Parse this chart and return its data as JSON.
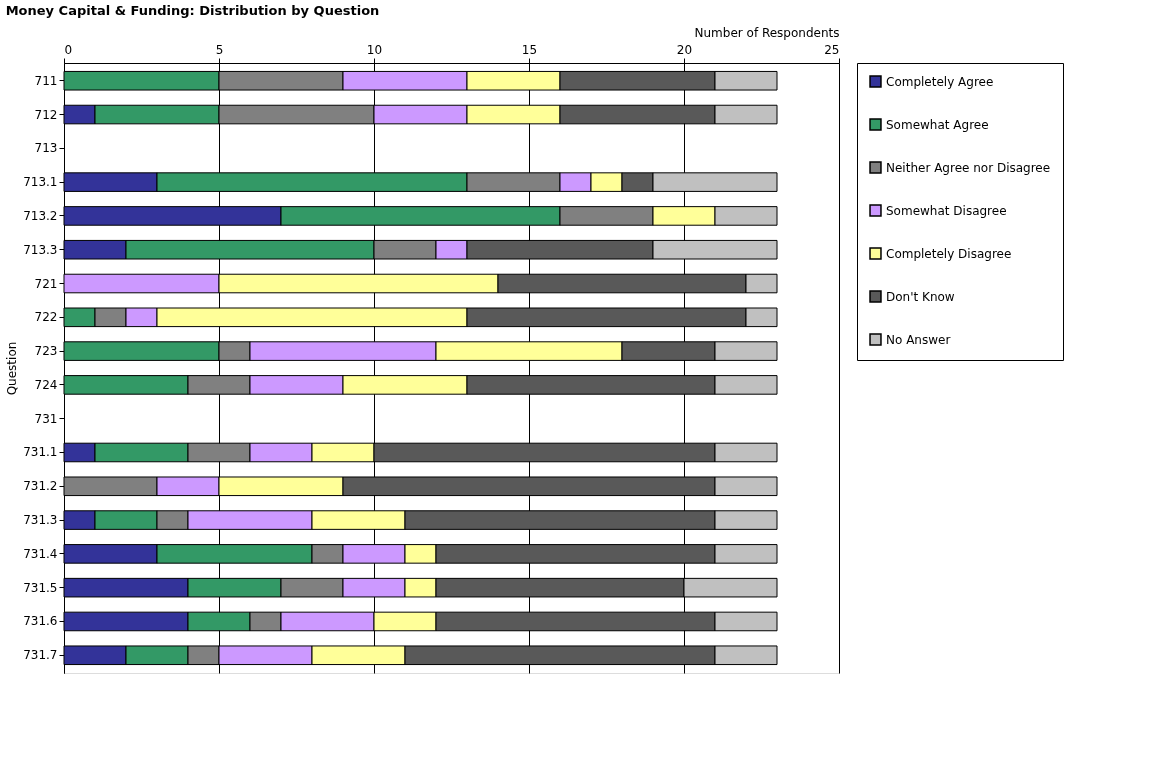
{
  "chart_data": {
    "type": "bar",
    "orientation": "horizontal",
    "stacked": true,
    "title": "Money Capital & Funding: Distribution by Question",
    "xlabel": "Number of Respondents",
    "ylabel": "Question",
    "categories": [
      "711",
      "712",
      "713",
      "713.1",
      "713.2",
      "713.3",
      "721",
      "722",
      "723",
      "724",
      "731",
      "731.1",
      "731.2",
      "731.3",
      "731.4",
      "731.5",
      "731.6",
      "731.7"
    ],
    "xlim": [
      0,
      25
    ],
    "xticks": [
      0,
      5,
      10,
      15,
      20,
      25
    ],
    "grid": "x",
    "legend": "right",
    "series": [
      {
        "name": "Completely Agree",
        "color": "#333399",
        "values": [
          null,
          1,
          null,
          3,
          7,
          2,
          null,
          null,
          null,
          null,
          null,
          1,
          null,
          1,
          3,
          4,
          4,
          2
        ]
      },
      {
        "name": "Somewhat Agree",
        "color": "#339966",
        "values": [
          5,
          4,
          null,
          10,
          9,
          8,
          null,
          1,
          5,
          4,
          null,
          3,
          null,
          2,
          5,
          3,
          2,
          2
        ]
      },
      {
        "name": "Neither Agree nor Disagree",
        "color": "#808080",
        "values": [
          4,
          5,
          null,
          3,
          3,
          2,
          null,
          1,
          1,
          2,
          null,
          2,
          3,
          1,
          1,
          2,
          1,
          1
        ]
      },
      {
        "name": "Somewhat Disagree",
        "color": "#cc99ff",
        "values": [
          4,
          3,
          null,
          1,
          null,
          1,
          5,
          1,
          6,
          3,
          null,
          2,
          2,
          4,
          2,
          2,
          3,
          3
        ]
      },
      {
        "name": "Completely Disagree",
        "color": "#ffff99",
        "values": [
          3,
          3,
          null,
          1,
          2,
          null,
          9,
          10,
          6,
          4,
          null,
          2,
          4,
          3,
          1,
          1,
          2,
          3
        ]
      },
      {
        "name": "Don't Know",
        "color": "#595959",
        "values": [
          5,
          5,
          null,
          1,
          null,
          6,
          8,
          9,
          3,
          8,
          null,
          11,
          12,
          10,
          9,
          8,
          9,
          10
        ]
      },
      {
        "name": "No Answer",
        "color": "#c0c0c0",
        "values": [
          2,
          2,
          null,
          4,
          2,
          4,
          1,
          1,
          2,
          2,
          null,
          2,
          2,
          2,
          2,
          3,
          2,
          2
        ]
      }
    ]
  }
}
